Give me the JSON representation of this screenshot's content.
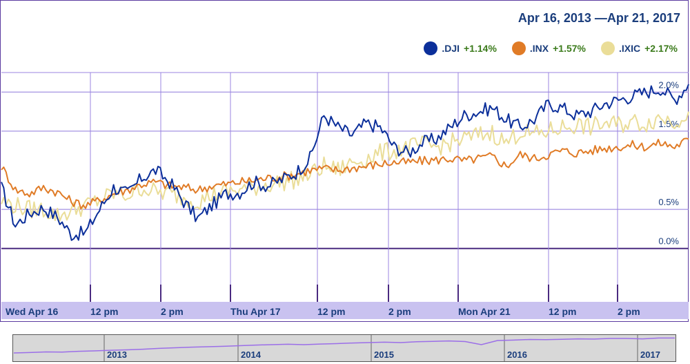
{
  "header": {
    "date_range": "Apr 16, 2013 —Apr 21, 2017"
  },
  "legend": [
    {
      "name": ".DJI",
      "change": "+1.14%",
      "color": "#0b2f9a"
    },
    {
      "name": ".INX",
      "change": "+1.57%",
      "color": "#e07b26"
    },
    {
      "name": ".IXIC",
      "change": "+2.17%",
      "color": "#eadd98"
    }
  ],
  "chart_data": {
    "type": "line",
    "y_ticks": [
      "0.0%",
      "0.5%",
      "1.5%",
      "2.0%"
    ],
    "y_tick_values": [
      0.0,
      0.5,
      1.5,
      2.0
    ],
    "ylim": [
      -0.25,
      2.25
    ],
    "x_ticks": [
      "Wed Apr 16",
      "12 pm",
      "2 pm",
      "Thu Apr 17",
      "12 pm",
      "2 pm",
      "Mon Apr 21",
      "12 pm",
      "2 pm"
    ],
    "grid": true,
    "series": [
      {
        "name": ".DJI",
        "color": "#0b2f9a",
        "values": [
          0.78,
          0.3,
          0.45,
          0.52,
          0.4,
          0.18,
          0.2,
          0.5,
          0.78,
          0.7,
          0.9,
          1.0,
          0.85,
          0.6,
          0.38,
          0.55,
          0.7,
          0.72,
          0.85,
          0.8,
          0.88,
          0.97,
          1.15,
          1.7,
          1.55,
          1.45,
          1.6,
          1.55,
          1.3,
          1.22,
          1.35,
          1.4,
          1.55,
          1.7,
          1.75,
          1.8,
          1.65,
          1.55,
          1.65,
          1.85,
          1.8,
          1.7,
          1.75,
          1.85,
          1.9,
          1.95,
          2.0,
          2.05,
          1.9,
          2.1
        ]
      },
      {
        "name": ".INX",
        "color": "#e07b26",
        "values": [
          1.05,
          0.75,
          0.7,
          0.78,
          0.72,
          0.6,
          0.55,
          0.62,
          0.7,
          0.75,
          0.82,
          0.85,
          0.8,
          0.78,
          0.75,
          0.8,
          0.82,
          0.85,
          0.87,
          0.9,
          0.92,
          0.95,
          1.0,
          1.02,
          1.0,
          1.03,
          1.05,
          1.08,
          1.1,
          1.1,
          1.12,
          1.13,
          1.15,
          1.12,
          1.15,
          1.18,
          1.05,
          1.2,
          1.15,
          1.2,
          1.25,
          1.22,
          1.25,
          1.28,
          1.3,
          1.32,
          1.3,
          1.35,
          1.3,
          1.4
        ]
      },
      {
        "name": ".IXIC",
        "color": "#eadd98",
        "values": [
          0.6,
          0.55,
          0.5,
          0.5,
          0.42,
          0.48,
          0.55,
          0.62,
          0.7,
          0.68,
          0.78,
          0.72,
          0.7,
          0.65,
          0.6,
          0.68,
          0.72,
          0.75,
          0.78,
          0.82,
          0.85,
          0.88,
          0.95,
          1.05,
          1.0,
          1.1,
          1.15,
          1.22,
          1.25,
          1.3,
          1.32,
          1.3,
          1.35,
          1.4,
          1.45,
          1.48,
          1.35,
          1.5,
          1.45,
          1.5,
          1.55,
          1.58,
          1.55,
          1.6,
          1.58,
          1.62,
          1.6,
          1.68,
          1.62,
          1.75
        ]
      }
    ]
  },
  "navigator": {
    "years": [
      "2013",
      "2014",
      "2015",
      "2016",
      "2017"
    ],
    "values": [
      0.2,
      0.22,
      0.25,
      0.24,
      0.28,
      0.3,
      0.33,
      0.35,
      0.38,
      0.42,
      0.45,
      0.48,
      0.5,
      0.52,
      0.55,
      0.58,
      0.6,
      0.62,
      0.6,
      0.63,
      0.65,
      0.68,
      0.7,
      0.72,
      0.7,
      0.74,
      0.76,
      0.78,
      0.75,
      0.6,
      0.8,
      0.82,
      0.85,
      0.84,
      0.86,
      0.88,
      0.87,
      0.9,
      0.9,
      0.88,
      0.92,
      0.92
    ]
  }
}
